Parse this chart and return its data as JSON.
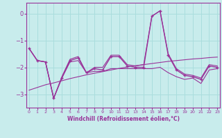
{
  "xlabel": "Windchill (Refroidissement éolien,°C)",
  "background_color": "#c8ecec",
  "line_color": "#993399",
  "grid_color": "#aadddd",
  "spine_color": "#993399",
  "x": [
    0,
    1,
    2,
    3,
    4,
    5,
    6,
    7,
    8,
    9,
    10,
    11,
    12,
    13,
    14,
    15,
    16,
    17,
    18,
    19,
    20,
    21,
    22,
    23
  ],
  "y_main": [
    -1.3,
    -1.75,
    -1.8,
    -3.15,
    -2.4,
    -1.75,
    -1.65,
    -2.2,
    -2.05,
    -2.1,
    -1.6,
    -1.6,
    -1.95,
    -2.0,
    -2.0,
    -0.1,
    0.1,
    -1.55,
    -2.1,
    -2.3,
    -2.35,
    -2.45,
    -1.95,
    -2.0
  ],
  "y_low": [
    -1.3,
    -1.75,
    -1.8,
    -3.15,
    -2.4,
    -1.8,
    -1.75,
    -2.2,
    -2.15,
    -2.15,
    -2.05,
    -2.05,
    -2.05,
    -2.05,
    -2.05,
    -2.05,
    -2.0,
    -2.2,
    -2.35,
    -2.45,
    -2.4,
    -2.6,
    -2.1,
    -2.05
  ],
  "y_high": [
    -1.3,
    -1.75,
    -1.8,
    -3.15,
    -2.35,
    -1.7,
    -1.6,
    -2.2,
    -2.0,
    -2.0,
    -1.55,
    -1.55,
    -1.9,
    -1.95,
    -1.9,
    -0.1,
    0.1,
    -1.5,
    -2.05,
    -2.25,
    -2.3,
    -2.4,
    -1.9,
    -1.95
  ],
  "y_trend": [
    -2.85,
    -2.75,
    -2.65,
    -2.58,
    -2.5,
    -2.42,
    -2.35,
    -2.28,
    -2.22,
    -2.16,
    -2.1,
    -2.04,
    -1.99,
    -1.94,
    -1.9,
    -1.86,
    -1.82,
    -1.78,
    -1.75,
    -1.72,
    -1.69,
    -1.67,
    -1.64,
    -1.62
  ],
  "ylim": [
    -3.5,
    0.4
  ],
  "yticks": [
    0,
    -1,
    -2,
    -3
  ],
  "xticks": [
    0,
    1,
    2,
    3,
    4,
    5,
    6,
    7,
    8,
    9,
    10,
    11,
    12,
    13,
    14,
    15,
    16,
    17,
    18,
    19,
    20,
    21,
    22,
    23
  ]
}
